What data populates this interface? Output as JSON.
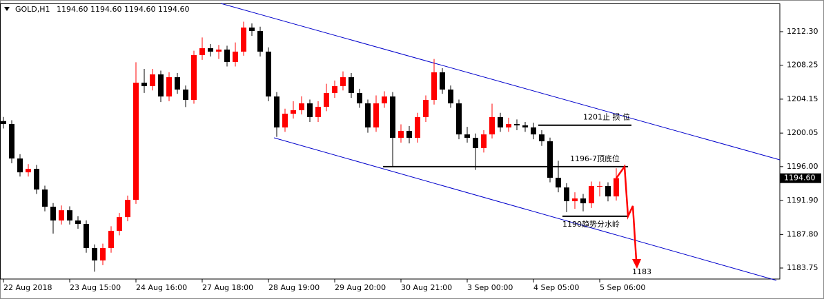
{
  "chart_data": {
    "type": "candlestick",
    "symbol": "GOLD,H1",
    "header_prices": "1194.60 1194.60 1194.60 1194.60",
    "last_price": {
      "value": 1194.6,
      "label": "1194.60"
    },
    "up_color": "#ff0000",
    "down_color": "#000000",
    "ylim": [
      1182.42,
      1215.71
    ],
    "yticks": [
      {
        "value": 1183.75,
        "label": "1183.75"
      },
      {
        "value": 1187.8,
        "label": "1187.80"
      },
      {
        "value": 1191.9,
        "label": "1191.90"
      },
      {
        "value": 1196.0,
        "label": "1196.00"
      },
      {
        "value": 1200.05,
        "label": "1200.05"
      },
      {
        "value": 1204.15,
        "label": "1204.15"
      },
      {
        "value": 1208.25,
        "label": "1208.25"
      },
      {
        "value": 1212.3,
        "label": "1212.30"
      }
    ],
    "xlim": [
      -1.25,
      281.25
    ],
    "xticks": [
      {
        "value": 0,
        "label": "22 Aug 2018"
      },
      {
        "value": 24,
        "label": "23 Aug 15:00"
      },
      {
        "value": 48,
        "label": "24 Aug 16:00"
      },
      {
        "value": 72,
        "label": "27 Aug 18:00"
      },
      {
        "value": 96,
        "label": "28 Aug 19:00"
      },
      {
        "value": 120,
        "label": "29 Aug 20:00"
      },
      {
        "value": 144,
        "label": "30 Aug 21:00"
      },
      {
        "value": 168,
        "label": "3 Sep 00:00"
      },
      {
        "value": 192,
        "label": "4 Sep 05:00"
      },
      {
        "value": 216,
        "label": "5 Sep 06:00"
      }
    ],
    "x": [
      0,
      3,
      6,
      9,
      12,
      15,
      18,
      21,
      24,
      27,
      30,
      33,
      36,
      39,
      42,
      45,
      48,
      51,
      54,
      57,
      60,
      63,
      66,
      69,
      72,
      75,
      78,
      81,
      84,
      87,
      90,
      93,
      96,
      99,
      102,
      105,
      108,
      111,
      114,
      117,
      120,
      123,
      126,
      129,
      132,
      135,
      138,
      141,
      144,
      147,
      150,
      153,
      156,
      159,
      162,
      165,
      168,
      171,
      174,
      177,
      180,
      183,
      186,
      189,
      192,
      195,
      198,
      201,
      204,
      207,
      210,
      213,
      216,
      219,
      222
    ],
    "ohlc": [
      [
        1201.5,
        1202.0,
        1200.6,
        1201.14
      ],
      [
        1201.14,
        1201.6,
        1196.4,
        1196.98
      ],
      [
        1196.98,
        1197.5,
        1194.8,
        1195.31
      ],
      [
        1195.31,
        1196.3,
        1194.8,
        1195.73
      ],
      [
        1195.73,
        1196.2,
        1192.7,
        1193.23
      ],
      [
        1193.23,
        1193.7,
        1190.6,
        1191.15
      ],
      [
        1191.15,
        1191.6,
        1187.9,
        1189.49
      ],
      [
        1189.49,
        1191.3,
        1189.0,
        1190.73
      ],
      [
        1190.73,
        1191.2,
        1189.0,
        1189.49
      ],
      [
        1189.49,
        1190.0,
        1188.5,
        1189.07
      ],
      [
        1189.07,
        1189.5,
        1185.6,
        1186.16
      ],
      [
        1186.16,
        1186.6,
        1183.3,
        1184.66
      ],
      [
        1184.66,
        1186.7,
        1184.1,
        1186.16
      ],
      [
        1186.16,
        1188.8,
        1185.6,
        1188.24
      ],
      [
        1188.24,
        1190.4,
        1187.7,
        1189.9
      ],
      [
        1189.9,
        1192.5,
        1189.4,
        1191.98
      ],
      [
        1191.98,
        1208.6,
        1191.5,
        1206.14
      ],
      [
        1206.14,
        1207.8,
        1204.9,
        1205.72
      ],
      [
        1205.72,
        1207.8,
        1205.2,
        1207.14
      ],
      [
        1207.14,
        1207.6,
        1203.8,
        1204.47
      ],
      [
        1204.47,
        1207.4,
        1203.9,
        1206.8
      ],
      [
        1206.8,
        1207.3,
        1204.8,
        1205.31
      ],
      [
        1205.31,
        1205.8,
        1203.2,
        1204.06
      ],
      [
        1204.06,
        1210.0,
        1203.6,
        1209.47
      ],
      [
        1209.47,
        1211.6,
        1208.9,
        1210.3
      ],
      [
        1210.3,
        1210.8,
        1209.3,
        1209.89
      ],
      [
        1209.89,
        1210.7,
        1209.0,
        1210.14
      ],
      [
        1210.14,
        1210.6,
        1208.1,
        1208.64
      ],
      [
        1208.64,
        1211.0,
        1208.1,
        1209.89
      ],
      [
        1209.89,
        1213.5,
        1209.4,
        1212.8
      ],
      [
        1212.8,
        1213.3,
        1211.8,
        1212.38
      ],
      [
        1212.38,
        1212.9,
        1209.3,
        1209.89
      ],
      [
        1209.89,
        1210.4,
        1203.9,
        1204.47
      ],
      [
        1204.47,
        1205.0,
        1199.6,
        1200.73
      ],
      [
        1200.73,
        1203.0,
        1200.2,
        1202.39
      ],
      [
        1202.39,
        1203.9,
        1201.8,
        1202.81
      ],
      [
        1202.81,
        1204.5,
        1202.3,
        1203.64
      ],
      [
        1203.64,
        1204.1,
        1201.4,
        1201.98
      ],
      [
        1201.98,
        1203.9,
        1201.4,
        1203.22
      ],
      [
        1203.22,
        1206.0,
        1202.7,
        1204.89
      ],
      [
        1204.89,
        1206.4,
        1204.3,
        1205.72
      ],
      [
        1205.72,
        1207.5,
        1205.2,
        1206.8
      ],
      [
        1206.8,
        1207.3,
        1204.3,
        1204.89
      ],
      [
        1204.89,
        1205.4,
        1203.1,
        1203.64
      ],
      [
        1203.64,
        1204.1,
        1200.1,
        1200.73
      ],
      [
        1200.73,
        1204.6,
        1200.2,
        1203.64
      ],
      [
        1203.64,
        1205.1,
        1203.1,
        1204.47
      ],
      [
        1204.47,
        1205.0,
        1196.0,
        1199.48
      ],
      [
        1199.48,
        1201.1,
        1198.9,
        1200.31
      ],
      [
        1200.31,
        1200.9,
        1198.8,
        1199.48
      ],
      [
        1199.48,
        1202.5,
        1198.9,
        1201.98
      ],
      [
        1201.98,
        1204.6,
        1201.4,
        1204.06
      ],
      [
        1204.06,
        1209.0,
        1203.5,
        1207.39
      ],
      [
        1207.39,
        1207.9,
        1204.8,
        1205.31
      ],
      [
        1205.31,
        1205.8,
        1203.1,
        1203.64
      ],
      [
        1203.64,
        1204.1,
        1199.3,
        1199.89
      ],
      [
        1199.89,
        1200.8,
        1198.9,
        1199.48
      ],
      [
        1199.48,
        1200.0,
        1195.6,
        1198.23
      ],
      [
        1198.23,
        1200.4,
        1197.7,
        1199.89
      ],
      [
        1199.89,
        1203.6,
        1199.4,
        1201.98
      ],
      [
        1201.98,
        1202.5,
        1200.2,
        1200.73
      ],
      [
        1200.73,
        1201.9,
        1200.2,
        1201.14
      ],
      [
        1201.14,
        1201.7,
        1200.4,
        1200.98
      ],
      [
        1200.98,
        1201.4,
        1200.2,
        1200.73
      ],
      [
        1200.73,
        1201.3,
        1199.3,
        1199.89
      ],
      [
        1199.89,
        1200.4,
        1198.5,
        1199.06
      ],
      [
        1199.06,
        1199.5,
        1194.1,
        1194.65
      ],
      [
        1194.65,
        1196.7,
        1192.9,
        1193.48
      ],
      [
        1193.48,
        1194.0,
        1190.5,
        1191.82
      ],
      [
        1191.82,
        1192.9,
        1190.9,
        1192.15
      ],
      [
        1192.15,
        1192.7,
        1190.6,
        1191.57
      ],
      [
        1191.57,
        1194.2,
        1191.0,
        1193.65
      ],
      [
        1193.65,
        1194.2,
        1192.4,
        1193.65
      ],
      [
        1193.65,
        1194.1,
        1191.8,
        1192.4
      ],
      [
        1192.4,
        1195.8,
        1191.9,
        1194.6
      ]
    ],
    "levels": [
      {
        "value": 1201,
        "label": "1201止 损 位"
      },
      {
        "value": 1196,
        "label": "1196-7顶底位"
      },
      {
        "value": 1190,
        "label": "1190趋势分水岭"
      }
    ],
    "target": {
      "value": 1183,
      "label": "1183"
    }
  }
}
